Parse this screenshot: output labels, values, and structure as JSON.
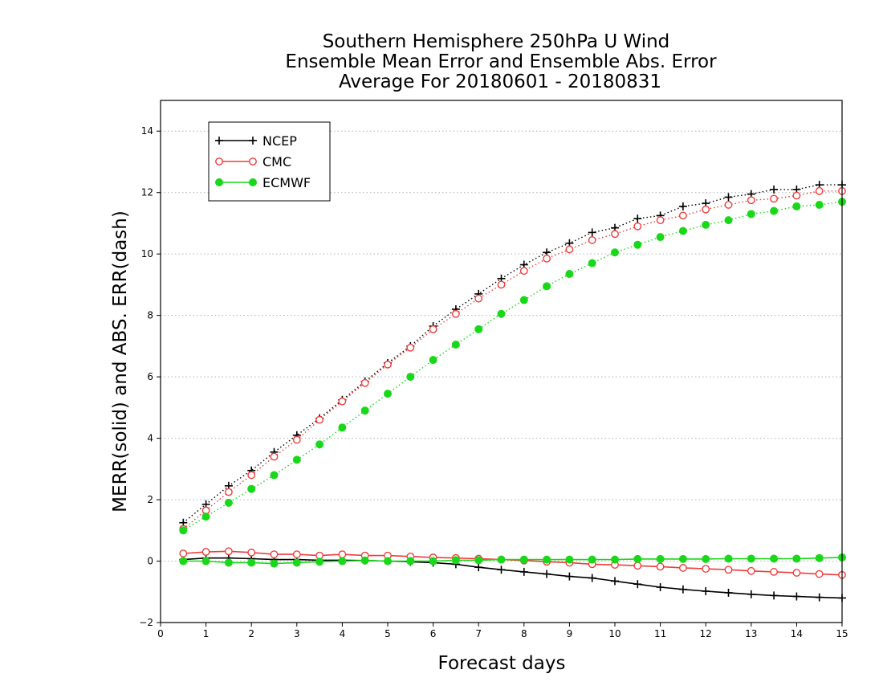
{
  "chart_data": {
    "type": "line",
    "title": [
      "Southern Hemisphere 250hPa U Wind",
      "Ensemble Mean Error and Ensemble Abs. Error",
      "Average For 20180601 - 20180831"
    ],
    "xlabel": "Forecast days",
    "ylabel": "MERR(solid) and ABS. ERR(dash)",
    "xlim": [
      0,
      15
    ],
    "ylim": [
      -2,
      15
    ],
    "x_ticks": [
      0,
      1,
      2,
      3,
      4,
      5,
      6,
      7,
      8,
      9,
      10,
      11,
      12,
      13,
      14,
      15
    ],
    "y_ticks": [
      -2,
      0,
      2,
      4,
      6,
      8,
      10,
      12,
      14
    ],
    "grid": "horizontal dotted",
    "legend_position": "top-left",
    "x": [
      0.5,
      1.0,
      1.5,
      2.0,
      2.5,
      3.0,
      3.5,
      4.0,
      4.5,
      5.0,
      5.5,
      6.0,
      6.5,
      7.0,
      7.5,
      8.0,
      8.5,
      9.0,
      9.5,
      10.0,
      10.5,
      11.0,
      11.5,
      12.0,
      12.5,
      13.0,
      13.5,
      14.0,
      14.5,
      15.0
    ],
    "series": [
      {
        "name": "NCEP",
        "color": "#000000",
        "marker": "plus",
        "abs_err": [
          1.25,
          1.85,
          2.45,
          2.95,
          3.55,
          4.1,
          4.65,
          5.25,
          5.85,
          6.45,
          7.0,
          7.65,
          8.2,
          8.7,
          9.2,
          9.65,
          10.05,
          10.35,
          10.7,
          10.85,
          11.15,
          11.25,
          11.55,
          11.65,
          11.85,
          11.95,
          12.1,
          12.1,
          12.25,
          12.25
        ],
        "mean_err": [
          0.05,
          0.1,
          0.1,
          0.08,
          0.05,
          0.05,
          0.03,
          0.03,
          0.02,
          0.0,
          -0.02,
          -0.05,
          -0.1,
          -0.2,
          -0.28,
          -0.35,
          -0.42,
          -0.5,
          -0.55,
          -0.65,
          -0.75,
          -0.85,
          -0.92,
          -0.98,
          -1.03,
          -1.08,
          -1.12,
          -1.15,
          -1.18,
          -1.2
        ]
      },
      {
        "name": "CMC",
        "color": "#f03c3c",
        "marker": "open-circle",
        "abs_err": [
          1.05,
          1.65,
          2.25,
          2.8,
          3.4,
          3.95,
          4.6,
          5.2,
          5.8,
          6.4,
          6.95,
          7.55,
          8.05,
          8.55,
          9.0,
          9.45,
          9.85,
          10.15,
          10.45,
          10.65,
          10.9,
          11.1,
          11.25,
          11.45,
          11.6,
          11.75,
          11.8,
          11.9,
          12.05,
          12.05
        ],
        "mean_err": [
          0.25,
          0.3,
          0.32,
          0.28,
          0.22,
          0.22,
          0.18,
          0.22,
          0.18,
          0.18,
          0.15,
          0.12,
          0.1,
          0.08,
          0.05,
          0.02,
          -0.02,
          -0.05,
          -0.1,
          -0.12,
          -0.15,
          -0.18,
          -0.22,
          -0.25,
          -0.28,
          -0.32,
          -0.35,
          -0.38,
          -0.42,
          -0.45
        ]
      },
      {
        "name": "ECMWF",
        "color": "#19d819",
        "marker": "filled-circle",
        "abs_err": [
          1.0,
          1.45,
          1.9,
          2.35,
          2.8,
          3.3,
          3.8,
          4.35,
          4.9,
          5.45,
          6.0,
          6.55,
          7.05,
          7.55,
          8.05,
          8.5,
          8.95,
          9.35,
          9.7,
          10.05,
          10.3,
          10.55,
          10.75,
          10.95,
          11.1,
          11.3,
          11.4,
          11.55,
          11.6,
          11.7
        ],
        "mean_err": [
          0.0,
          0.0,
          -0.05,
          -0.05,
          -0.08,
          -0.05,
          -0.02,
          0.0,
          0.02,
          0.0,
          0.0,
          0.0,
          0.03,
          0.03,
          0.05,
          0.05,
          0.05,
          0.05,
          0.05,
          0.05,
          0.07,
          0.07,
          0.07,
          0.07,
          0.08,
          0.08,
          0.08,
          0.08,
          0.1,
          0.12
        ]
      }
    ]
  }
}
